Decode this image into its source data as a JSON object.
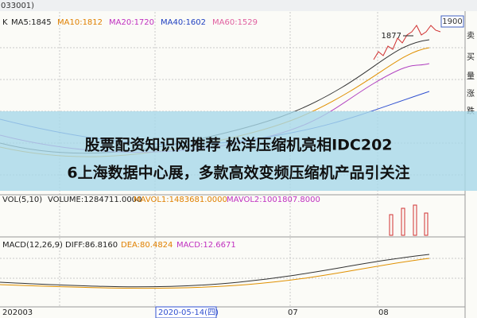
{
  "header": {
    "code": "033001)",
    "price_box": "1900"
  },
  "price_panel": {
    "label": "K",
    "indicators": [
      "MA5:1845",
      "MA10:1812",
      "MA20:1720",
      "MA40:1602",
      "MA60:1529"
    ],
    "peak_label": "1877"
  },
  "overlay": {
    "lines": [
      "股票配资知识网推荐 松洋压缩机亮相IDC202",
      "6上海数据中心展，多款高效变频压缩机产品引关注"
    ]
  },
  "volume_panel": {
    "indicators": [
      "VOL(5,10)",
      "VOLUME:1284711.0000",
      "MAVOL1:1483681.0000",
      "MAVOL2:1001807.8000"
    ]
  },
  "macd_panel": {
    "indicators": [
      "MACD(12,26,9)",
      "DIFF:86.8160",
      "DEA:80.4824",
      "MACD:12.6671"
    ]
  },
  "x_axis": {
    "labels": [
      "202003",
      "2020-05-14(四)",
      "07",
      "08"
    ]
  },
  "side_buttons": [
    "卖",
    "买",
    "量",
    "涨",
    "跌"
  ]
}
